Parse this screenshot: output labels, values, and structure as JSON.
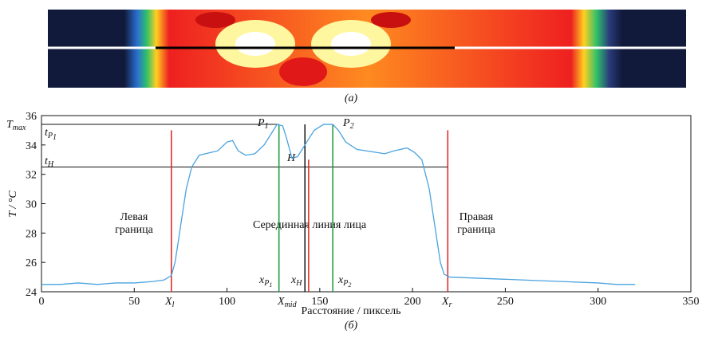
{
  "chart_data": {
    "type": "line",
    "panel_a_label": "(а)",
    "panel_b_label": "(б)",
    "x_label": "Расстояние / пиксель",
    "y_label": "T / °C",
    "xlim": [
      0,
      350
    ],
    "xticks": [
      0,
      50,
      100,
      150,
      200,
      250,
      300,
      350
    ],
    "ylim": [
      24,
      36
    ],
    "yticks": [
      24,
      26,
      28,
      30,
      32,
      34,
      36
    ],
    "series": [
      {
        "color": "#4aa3df",
        "x": [
          0,
          10,
          20,
          30,
          40,
          50,
          60,
          66,
          70,
          72,
          75,
          78,
          81,
          85,
          95,
          100,
          103,
          106,
          110,
          115,
          120,
          124,
          127,
          130,
          132,
          135,
          138,
          142,
          147,
          152,
          157,
          160,
          164,
          170,
          180,
          185,
          190,
          197,
          201,
          205,
          209,
          212,
          215,
          217,
          220,
          240,
          260,
          280,
          300,
          310,
          320
        ],
        "values": [
          24.5,
          24.5,
          24.6,
          24.5,
          24.6,
          24.6,
          24.7,
          24.8,
          25.1,
          26,
          28.5,
          31,
          32.5,
          33.3,
          33.6,
          34.2,
          34.3,
          33.6,
          33.3,
          33.4,
          34,
          34.8,
          35.4,
          35.3,
          34.5,
          33.1,
          33.2,
          34,
          35,
          35.4,
          35.4,
          35,
          34.2,
          33.7,
          33.5,
          33.4,
          33.6,
          33.8,
          33.5,
          33,
          31,
          28.5,
          26,
          25.2,
          25,
          24.9,
          24.8,
          24.7,
          24.6,
          24.5,
          24.5
        ]
      }
    ],
    "vlines": [
      {
        "x": 70,
        "top": 35,
        "color": "#e02020"
      },
      {
        "x": 128,
        "top": 35.4,
        "color": "#1a9a3a"
      },
      {
        "x": 142,
        "top": 35.4,
        "color": "#111111"
      },
      {
        "x": 144,
        "top": 33,
        "color": "#e02020"
      },
      {
        "x": 157,
        "top": 35.4,
        "color": "#1a9a3a"
      },
      {
        "x": 219,
        "top": 35,
        "color": "#e02020"
      }
    ],
    "hlines": [
      {
        "y": 35.4,
        "from": 0,
        "to": 128,
        "color": "#111111"
      },
      {
        "y": 32.5,
        "from": 0,
        "to": 219,
        "color": "#111111"
      }
    ],
    "annotations": {
      "t_max": [
        "T",
        "max"
      ],
      "t_p1": [
        "t",
        "P",
        "1"
      ],
      "t_h": [
        "t",
        "H"
      ],
      "p1": [
        "P",
        "1"
      ],
      "p2": [
        "P",
        "2"
      ],
      "h": "H",
      "left": [
        "Левая",
        "граница"
      ],
      "mid": "Серединная линия лица",
      "right": [
        "Правая",
        "граница"
      ],
      "xl": [
        "X",
        "l"
      ],
      "xmid": [
        "X",
        "mid"
      ],
      "xr": [
        "X",
        "r"
      ],
      "xp1": [
        "x",
        "P",
        "1"
      ],
      "xh": [
        "x",
        "H"
      ],
      "xp2": [
        "x",
        "P",
        "2"
      ]
    }
  }
}
